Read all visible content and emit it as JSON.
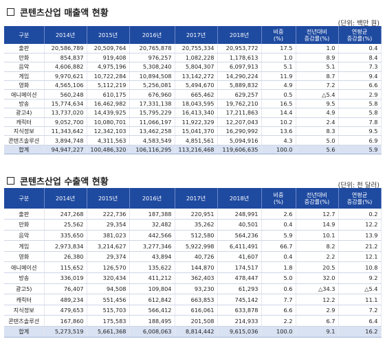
{
  "table1": {
    "title": "콘텐츠산업 매출액 현황",
    "unit": "(단위: 백만 원)",
    "headers": [
      "구분",
      "2014년",
      "2015년",
      "2016년",
      "2017년",
      "2018년",
      "비중\n(%)",
      "전년대비\n증감률(%)",
      "연평균\n증감률(%)"
    ],
    "rows": [
      [
        "출판",
        "20,586,789",
        "20,509,764",
        "20,765,878",
        "20,755,334",
        "20,953,772",
        "17.5",
        "1.0",
        "0.4"
      ],
      [
        "만화",
        "854,837",
        "919,408",
        "976,257",
        "1,082,228",
        "1,178,613",
        "1.0",
        "8.9",
        "8.4"
      ],
      [
        "음악",
        "4,606,882",
        "4,975,196",
        "5,308,240",
        "5,804,307",
        "6,097,913",
        "5.1",
        "5.1",
        "7.3"
      ],
      [
        "게임",
        "9,970,621",
        "10,722,284",
        "10,894,508",
        "13,142,272",
        "14,290,224",
        "11.9",
        "8.7",
        "9.4"
      ],
      [
        "영화",
        "4,565,106",
        "5,112,219",
        "5,256,081",
        "5,494,670",
        "5,889,832",
        "4.9",
        "7.2",
        "6.6"
      ],
      [
        "애니메이션",
        "560,248",
        "610,175",
        "676,960",
        "665,462",
        "629,257",
        "0.5",
        "△5.4",
        "2.9"
      ],
      [
        "방송",
        "15,774,634",
        "16,462,982",
        "17,331,138",
        "18,043,595",
        "19,762,210",
        "16.5",
        "9.5",
        "5.8"
      ],
      [
        "광고4)",
        "13,737,020",
        "14,439,925",
        "15,795,229",
        "16,413,340",
        "17,211,863",
        "14.4",
        "4.9",
        "5.8"
      ],
      [
        "캐릭터",
        "9,052,700",
        "10,080,701",
        "11,066,197",
        "11,922,329",
        "12,207,043",
        "10.2",
        "2.4",
        "7.8"
      ],
      [
        "지식정보",
        "11,343,642",
        "12,342,103",
        "13,462,258",
        "15,041,370",
        "16,290,992",
        "13.6",
        "8.3",
        "9.5"
      ],
      [
        "콘텐츠솔루션",
        "3,894,748",
        "4,311,563",
        "4,583,549",
        "4,851,561",
        "5,094,916",
        "4.3",
        "5.0",
        "6.9"
      ],
      [
        "합계",
        "94,947,227",
        "100,486,320",
        "106,116,295",
        "113,216,468",
        "119,606,635",
        "100.0",
        "5.6",
        "5.9"
      ]
    ]
  },
  "table2": {
    "title": "콘텐츠산업 수출액 현황",
    "unit": "(단위: 천 달러)",
    "headers": [
      "구분",
      "2014년",
      "2015년",
      "2016년",
      "2017년",
      "2018년",
      "비중\n(%)",
      "전년대비\n증감률(%)",
      "연평균\n증감률(%)"
    ],
    "rows": [
      [
        "출판",
        "247,268",
        "222,736",
        "187,388",
        "220,951",
        "248,991",
        "2.6",
        "12.7",
        "0.2"
      ],
      [
        "만화",
        "25,562",
        "29,354",
        "32,482",
        "35,262",
        "40,501",
        "0.4",
        "14.9",
        "12.2"
      ],
      [
        "음악",
        "335,650",
        "381,023",
        "442,566",
        "512,580",
        "564,236",
        "5.9",
        "10.1",
        "13.9"
      ],
      [
        "게임",
        "2,973,834",
        "3,214,627",
        "3,277,346",
        "5,922,998",
        "6,411,491",
        "66.7",
        "8.2",
        "21.2"
      ],
      [
        "영화",
        "26,380",
        "29,374",
        "43,894",
        "40,726",
        "41,607",
        "0.4",
        "2.2",
        "12.1"
      ],
      [
        "애니메이션",
        "115,652",
        "126,570",
        "135,622",
        "144,870",
        "174,517",
        "1.8",
        "20.5",
        "10.8"
      ],
      [
        "방송",
        "336,019",
        "320,434",
        "411,212",
        "362,403",
        "478,447",
        "5.0",
        "32.0",
        "9.2"
      ],
      [
        "광고5)",
        "76,407",
        "94,508",
        "109,804",
        "93,230",
        "61,293",
        "0.6",
        "△34.3",
        "△5.4"
      ],
      [
        "캐릭터",
        "489,234",
        "551,456",
        "612,842",
        "663,853",
        "745,142",
        "7.7",
        "12.2",
        "11.1"
      ],
      [
        "지식정보",
        "479,653",
        "515,703",
        "566,412",
        "616,061",
        "633,878",
        "6.6",
        "2.9",
        "7.2"
      ],
      [
        "콘텐츠솔루션",
        "167,860",
        "175,583",
        "188,495",
        "201,508",
        "214,933",
        "2.2",
        "6.7",
        "6.4"
      ],
      [
        "합계",
        "5,273,519",
        "5,661,368",
        "6,008,063",
        "8,814,442",
        "9,615,036",
        "100.0",
        "9.1",
        "16.2"
      ]
    ]
  }
}
